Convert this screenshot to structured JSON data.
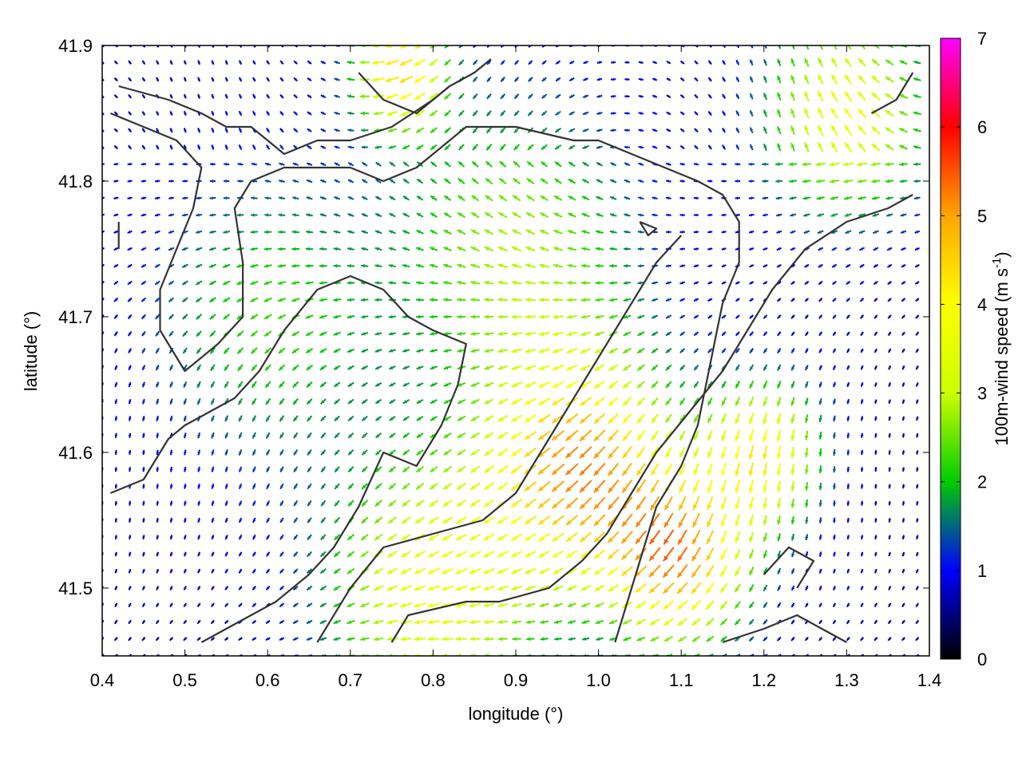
{
  "chart_data": {
    "type": "vector-field",
    "xlabel": "longitude (°)",
    "ylabel": "latitude (°)",
    "xlim": [
      0.4,
      1.4
    ],
    "ylim": [
      41.45,
      41.9
    ],
    "xticks": [
      0.4,
      0.5,
      0.6,
      0.7,
      0.8,
      0.9,
      1.0,
      1.1,
      1.2,
      1.3,
      1.4
    ],
    "xtick_labels": [
      "0.4",
      "0.5",
      "0.6",
      "0.7",
      "0.8",
      "0.9",
      "1.0",
      "1.1",
      "1.2",
      "1.3",
      "1.4"
    ],
    "yticks": [
      41.5,
      41.6,
      41.7,
      41.8,
      41.9
    ],
    "ytick_labels": [
      "41.5",
      "41.6",
      "41.7",
      "41.8",
      "41.9"
    ],
    "colorbar": {
      "label_main": "100m-wind speed (m s",
      "label_sup": "-1",
      "label_end": ")",
      "range": [
        0,
        7
      ],
      "ticks": [
        0,
        1,
        2,
        3,
        4,
        5,
        6,
        7
      ],
      "tick_labels": [
        "0",
        "1",
        "2",
        "3",
        "4",
        "5",
        "6",
        "7"
      ],
      "colors": [
        "#000000",
        "#0000ff",
        "#00cc00",
        "#ccff00",
        "#ffff00",
        "#ffa500",
        "#ff0000",
        "#ff00ff"
      ]
    },
    "contours": [
      [
        [
          0.42,
          41.87
        ],
        [
          0.48,
          41.86
        ],
        [
          0.52,
          41.85
        ],
        [
          0.55,
          41.84
        ],
        [
          0.58,
          41.84
        ],
        [
          0.62,
          41.82
        ],
        [
          0.66,
          41.83
        ],
        [
          0.7,
          41.83
        ],
        [
          0.75,
          41.84
        ],
        [
          0.8,
          41.86
        ],
        [
          0.82,
          41.87
        ],
        [
          0.85,
          41.88
        ],
        [
          0.87,
          41.89
        ]
      ],
      [
        [
          0.41,
          41.85
        ],
        [
          0.45,
          41.84
        ],
        [
          0.49,
          41.83
        ],
        [
          0.52,
          41.81
        ],
        [
          0.51,
          41.78
        ],
        [
          0.49,
          41.75
        ],
        [
          0.47,
          41.72
        ],
        [
          0.47,
          41.69
        ],
        [
          0.5,
          41.66
        ],
        [
          0.54,
          41.68
        ],
        [
          0.57,
          41.7
        ],
        [
          0.57,
          41.74
        ],
        [
          0.56,
          41.78
        ],
        [
          0.58,
          41.8
        ],
        [
          0.62,
          41.81
        ],
        [
          0.66,
          41.81
        ],
        [
          0.7,
          41.81
        ],
        [
          0.74,
          41.8
        ],
        [
          0.78,
          41.81
        ],
        [
          0.8,
          41.82
        ],
        [
          0.84,
          41.84
        ],
        [
          0.9,
          41.84
        ],
        [
          0.97,
          41.83
        ],
        [
          1.0,
          41.83
        ],
        [
          1.04,
          41.82
        ],
        [
          1.08,
          41.81
        ],
        [
          1.12,
          41.8
        ],
        [
          1.15,
          41.79
        ],
        [
          1.17,
          41.77
        ],
        [
          1.17,
          41.74
        ],
        [
          1.15,
          41.71
        ],
        [
          1.14,
          41.68
        ],
        [
          1.13,
          41.65
        ],
        [
          1.12,
          41.62
        ],
        [
          1.1,
          41.59
        ],
        [
          1.07,
          41.56
        ],
        [
          1.05,
          41.52
        ],
        [
          1.03,
          41.48
        ],
        [
          1.02,
          41.46
        ]
      ],
      [
        [
          0.41,
          41.57
        ],
        [
          0.45,
          41.58
        ],
        [
          0.48,
          41.61
        ],
        [
          0.5,
          41.62
        ],
        [
          0.53,
          41.63
        ],
        [
          0.56,
          41.64
        ],
        [
          0.59,
          41.66
        ],
        [
          0.62,
          41.69
        ],
        [
          0.66,
          41.72
        ],
        [
          0.7,
          41.73
        ],
        [
          0.74,
          41.72
        ],
        [
          0.77,
          41.7
        ],
        [
          0.8,
          41.69
        ],
        [
          0.84,
          41.68
        ],
        [
          0.83,
          41.65
        ],
        [
          0.81,
          41.62
        ],
        [
          0.78,
          41.59
        ],
        [
          0.74,
          41.6
        ],
        [
          0.71,
          41.56
        ],
        [
          0.68,
          41.53
        ],
        [
          0.65,
          41.51
        ],
        [
          0.61,
          41.49
        ],
        [
          0.58,
          41.48
        ],
        [
          0.55,
          41.47
        ],
        [
          0.52,
          41.46
        ]
      ],
      [
        [
          0.66,
          41.46
        ],
        [
          0.7,
          41.5
        ],
        [
          0.74,
          41.53
        ],
        [
          0.8,
          41.54
        ],
        [
          0.86,
          41.55
        ],
        [
          0.9,
          41.57
        ],
        [
          0.93,
          41.6
        ],
        [
          0.96,
          41.63
        ],
        [
          0.99,
          41.66
        ],
        [
          1.02,
          41.69
        ],
        [
          1.05,
          41.72
        ],
        [
          1.07,
          41.74
        ],
        [
          1.1,
          41.76
        ]
      ],
      [
        [
          0.75,
          41.46
        ],
        [
          0.77,
          41.48
        ],
        [
          0.84,
          41.49
        ],
        [
          0.88,
          41.49
        ],
        [
          0.94,
          41.5
        ],
        [
          0.98,
          41.52
        ],
        [
          1.01,
          41.54
        ],
        [
          1.04,
          41.57
        ],
        [
          1.07,
          41.6
        ],
        [
          1.11,
          41.63
        ],
        [
          1.15,
          41.66
        ],
        [
          1.18,
          41.69
        ],
        [
          1.21,
          41.72
        ],
        [
          1.25,
          41.75
        ],
        [
          1.3,
          41.77
        ],
        [
          1.35,
          41.78
        ],
        [
          1.38,
          41.79
        ]
      ],
      [
        [
          1.15,
          41.46
        ],
        [
          1.2,
          41.47
        ],
        [
          1.24,
          41.48
        ],
        [
          1.27,
          41.47
        ],
        [
          1.3,
          41.46
        ]
      ],
      [
        [
          1.05,
          41.77
        ],
        [
          1.07,
          41.765
        ],
        [
          1.06,
          41.76
        ],
        [
          1.05,
          41.77
        ]
      ],
      [
        [
          1.33,
          41.85
        ],
        [
          1.36,
          41.86
        ],
        [
          1.38,
          41.88
        ]
      ],
      [
        [
          0.71,
          41.88
        ],
        [
          0.74,
          41.86
        ],
        [
          0.78,
          41.85
        ],
        [
          0.82,
          41.87
        ]
      ],
      [
        [
          1.2,
          41.51
        ],
        [
          1.23,
          41.53
        ],
        [
          1.26,
          41.52
        ],
        [
          1.24,
          41.5
        ]
      ],
      [
        [
          0.42,
          41.75
        ],
        [
          0.42,
          41.77
        ]
      ]
    ],
    "wind_field": {
      "grid_step_lon": 0.0167,
      "grid_step_lat": 0.0125,
      "speed_centers": [
        {
          "lon": 0.98,
          "lat": 41.59,
          "speed": 5.2,
          "sigma": 0.08
        },
        {
          "lon": 1.1,
          "lat": 41.52,
          "speed": 5.0,
          "sigma": 0.06
        },
        {
          "lon": 0.8,
          "lat": 41.5,
          "speed": 4.0,
          "sigma": 0.09
        },
        {
          "lon": 1.2,
          "lat": 41.6,
          "speed": 4.3,
          "sigma": 0.05
        },
        {
          "lon": 0.76,
          "lat": 41.88,
          "speed": 4.6,
          "sigma": 0.04
        },
        {
          "lon": 1.3,
          "lat": 41.85,
          "speed": 4.0,
          "sigma": 0.07
        },
        {
          "lon": 0.6,
          "lat": 41.7,
          "speed": 2.4,
          "sigma": 0.1
        },
        {
          "lon": 0.9,
          "lat": 41.75,
          "speed": 3.0,
          "sigma": 0.1
        }
      ],
      "base_speed": 0.7
    }
  }
}
